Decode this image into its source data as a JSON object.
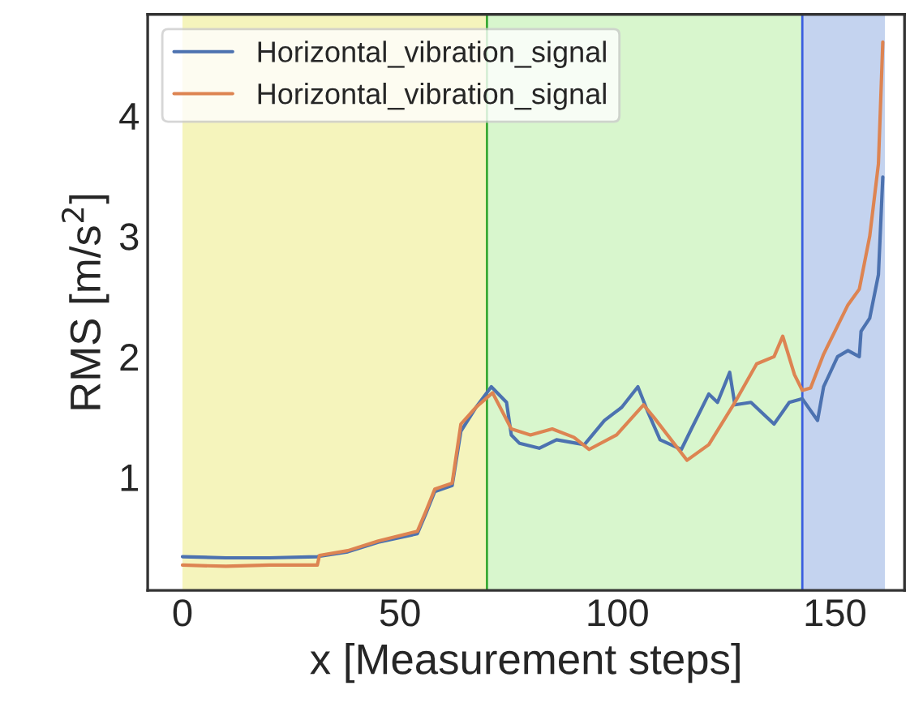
{
  "chart_data": {
    "type": "line",
    "xlabel": "x [Measurement steps]",
    "ylabel": "RMS [m/s$^{2}$]",
    "xlim": [
      -8,
      166
    ],
    "ylim": [
      0.06,
      4.84
    ],
    "xticks": [
      0,
      50,
      100,
      150
    ],
    "yticks": [
      1,
      2,
      3,
      4
    ],
    "grid": false,
    "legend": "top left",
    "marker": "none",
    "line_style": "solid",
    "bands": [
      {
        "axis": "x",
        "from": 0,
        "to": 70,
        "color": "#f5f4bc"
      },
      {
        "axis": "x",
        "from": 70,
        "to": 142.5,
        "color": "#d8f6cd"
      },
      {
        "axis": "x",
        "from": 142.5,
        "to": 161.5,
        "color": "#c4d3ef"
      }
    ],
    "ref_lines": [
      {
        "axis": "x",
        "value": 70,
        "color": "#3aaa35"
      },
      {
        "axis": "x",
        "value": 142.5,
        "color": "#3a5de0"
      }
    ],
    "series": [
      {
        "name": "Horizontal_vibration_signal",
        "color": "#4c72b0",
        "x": [
          0,
          10,
          20,
          31,
          38,
          45,
          54,
          56,
          58,
          62,
          64,
          67.5,
          71,
          74.5,
          75.6,
          77.5,
          82,
          86,
          92.4,
          97,
          101,
          104.7,
          107,
          109.8,
          114.7,
          117,
          121,
          123,
          125.8,
          127,
          130.7,
          136,
          139.5,
          142.5,
          146,
          147.4,
          150.6,
          153,
          155.6,
          156,
          158,
          160,
          161
        ],
        "values": [
          0.34,
          0.33,
          0.33,
          0.34,
          0.38,
          0.46,
          0.53,
          0.7,
          0.88,
          0.93,
          1.38,
          1.58,
          1.75,
          1.62,
          1.35,
          1.28,
          1.24,
          1.31,
          1.27,
          1.47,
          1.58,
          1.75,
          1.54,
          1.31,
          1.23,
          1.4,
          1.69,
          1.62,
          1.87,
          1.6,
          1.62,
          1.44,
          1.62,
          1.65,
          1.47,
          1.75,
          2.0,
          2.05,
          2.0,
          2.21,
          2.32,
          2.68,
          3.49
        ]
      },
      {
        "name": "Horizontal_vibration_signal",
        "color": "#dd8452",
        "x": [
          0,
          10,
          20,
          31,
          31.5,
          38,
          45,
          54,
          56,
          58,
          62,
          64,
          67.5,
          71.3,
          75.6,
          80,
          85,
          90,
          93.5,
          99.8,
          106,
          108.5,
          116,
          121,
          127,
          132,
          136,
          138,
          140.7,
          142.5,
          144.4,
          147.4,
          153,
          155.6,
          158,
          160,
          161
        ],
        "values": [
          0.27,
          0.26,
          0.27,
          0.27,
          0.35,
          0.39,
          0.47,
          0.55,
          0.72,
          0.9,
          0.95,
          1.44,
          1.58,
          1.7,
          1.4,
          1.35,
          1.4,
          1.33,
          1.23,
          1.35,
          1.6,
          1.49,
          1.14,
          1.27,
          1.62,
          1.94,
          2.0,
          2.17,
          1.85,
          1.72,
          1.74,
          2.02,
          2.43,
          2.56,
          3.0,
          3.6,
          4.61
        ]
      }
    ]
  }
}
